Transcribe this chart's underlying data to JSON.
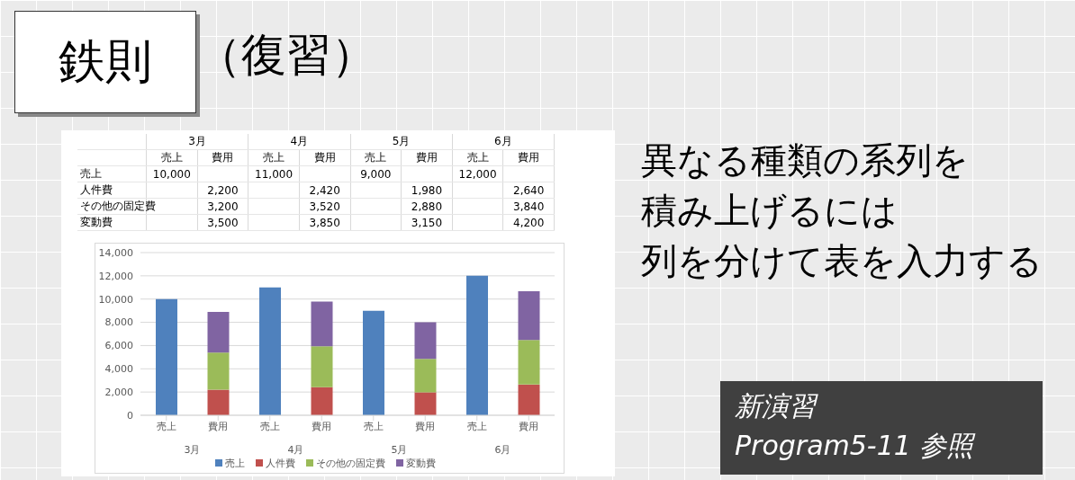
{
  "chart_data": {
    "type": "bar",
    "title": "鉄則",
    "subtitle": "（復習）",
    "categories": [
      "売上",
      "費用",
      "売上",
      "費用",
      "売上",
      "費用",
      "売上",
      "費用"
    ],
    "series": [
      {
        "name": "売上",
        "color": "#4f81bd",
        "values": [
          10000,
          null,
          11000,
          null,
          9000,
          null,
          12000,
          null
        ],
        "value_labels": [
          "10,000",
          null,
          "11,000",
          null,
          "9,000",
          null,
          "12,000",
          null
        ]
      },
      {
        "name": "人件費",
        "color": "#c0504d",
        "values": [
          null,
          2200,
          null,
          2420,
          null,
          1980,
          null,
          2640
        ],
        "value_labels": [
          null,
          "2,200",
          null,
          "2,420",
          null,
          "1,980",
          null,
          "2,640"
        ]
      },
      {
        "name": "その他の固定費",
        "color": "#9bbb59",
        "values": [
          null,
          3200,
          null,
          3520,
          null,
          2880,
          null,
          3840
        ],
        "value_labels": [
          null,
          "3,200",
          null,
          "3,520",
          null,
          "2,880",
          null,
          "3,840"
        ]
      },
      {
        "name": "変動費",
        "color": "#8064a2",
        "values": [
          null,
          3500,
          null,
          3850,
          null,
          3150,
          null,
          4200
        ],
        "value_labels": [
          null,
          "3,500",
          null,
          "3,850",
          null,
          "3,150",
          null,
          "4,200"
        ]
      }
    ],
    "stacked": true,
    "ylim": [
      0,
      14000
    ],
    "yticks": [
      {
        "value": 0,
        "label": "0"
      },
      {
        "value": 2000,
        "label": "2,000"
      },
      {
        "value": 4000,
        "label": "4,000"
      },
      {
        "value": 6000,
        "label": "6,000"
      },
      {
        "value": 8000,
        "label": "8,000"
      },
      {
        "value": 10000,
        "label": "10,000"
      },
      {
        "value": 12000,
        "label": "12,000"
      },
      {
        "value": 14000,
        "label": "14,000"
      }
    ],
    "grid": "y",
    "legend": "bottom",
    "annotations": [
      "3月",
      "4月",
      "5月",
      "6月",
      "異なる種類の系列を",
      "積み上げるには",
      "列を分けて表を入力する",
      "新演習",
      "Program5-11 参照"
    ]
  }
}
